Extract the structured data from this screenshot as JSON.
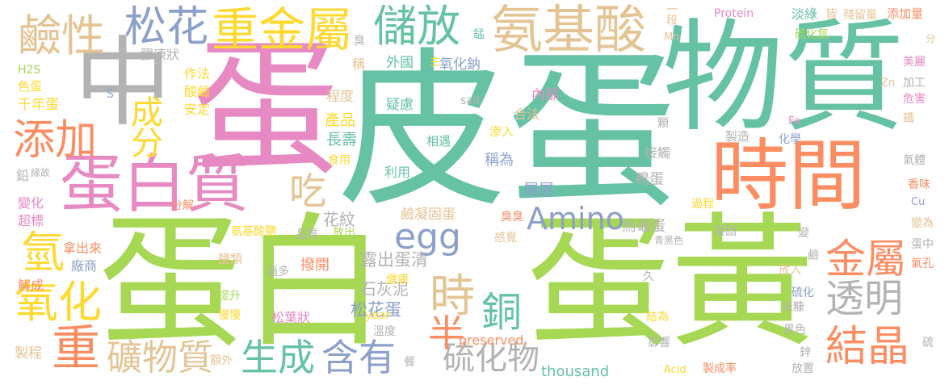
{
  "words": [
    {
      "text": "皮蛋",
      "color": "#66c2a5"
    },
    {
      "text": "蛋白",
      "color": "#a6d854"
    },
    {
      "text": "蛋黃",
      "color": "#a6d854"
    },
    {
      "text": "物質",
      "color": "#66c2a5"
    },
    {
      "text": "蛋",
      "color": "#e78ac3"
    },
    {
      "text": "時間",
      "color": "#fc8d62"
    },
    {
      "text": "中",
      "color": "#b3b3b3"
    },
    {
      "text": "蛋白質",
      "color": "#e78ac3"
    },
    {
      "text": "氨基酸",
      "color": "#e5c494"
    },
    {
      "text": "重金屬",
      "color": "#ffd92f"
    },
    {
      "text": "鹼性",
      "color": "#e5c494"
    },
    {
      "text": "松花",
      "color": "#8da0cb"
    },
    {
      "text": "儲放",
      "color": "#66c2a5"
    },
    {
      "text": "添加",
      "color": "#fc8d62"
    },
    {
      "text": "成分",
      "color": "#ffd92f"
    },
    {
      "text": "egg",
      "color": "#8da0cb"
    },
    {
      "text": "Amino",
      "color": "#8da0cb"
    },
    {
      "text": "金屬",
      "color": "#fc8d62"
    },
    {
      "text": "透明",
      "color": "#b3b3b3"
    },
    {
      "text": "結晶",
      "color": "#fc8d62"
    },
    {
      "text": "氧化",
      "color": "#ffd92f"
    },
    {
      "text": "重",
      "color": "#fc8d62"
    },
    {
      "text": "礦物質",
      "color": "#e5c494"
    },
    {
      "text": "生成",
      "color": "#66c2a5"
    },
    {
      "text": "含有",
      "color": "#8da0cb"
    },
    {
      "text": "硫化物",
      "color": "#b3b3b3"
    },
    {
      "text": "時",
      "color": "#e5c494"
    },
    {
      "text": "銅",
      "color": "#66c2a5"
    },
    {
      "text": "半",
      "color": "#fc8d62"
    },
    {
      "text": "吃",
      "color": "#e5c494"
    },
    {
      "text": "氫",
      "color": "#ffd92f"
    },
    {
      "text": "鹼凝固蛋",
      "color": "#e5c494"
    },
    {
      "text": "松花蛋",
      "color": "#8da0cb"
    },
    {
      "text": "露出蛋清",
      "color": "#b3b3b3"
    },
    {
      "text": "石灰泥",
      "color": "#b3b3b3"
    },
    {
      "text": "花紋",
      "color": "#b3b3b3"
    },
    {
      "text": "烏龜蛋",
      "color": "#b3b3b3"
    },
    {
      "text": "鴨蛋",
      "color": "#b3b3b3"
    },
    {
      "text": "層層",
      "color": "#8da0cb"
    },
    {
      "text": "稱為",
      "color": "#8da0cb"
    },
    {
      "text": "長壽",
      "color": "#66c2a5"
    },
    {
      "text": "產品",
      "color": "#ffd92f"
    },
    {
      "text": "程度",
      "color": "#e5c494"
    },
    {
      "text": "安定",
      "color": "#ffd92f"
    },
    {
      "text": "酸鹼",
      "color": "#ffd92f"
    },
    {
      "text": "作法",
      "color": "#ffd92f"
    },
    {
      "text": "膠凍狀",
      "color": "#b3b3b3"
    },
    {
      "text": "千年蛋",
      "color": "#ffd92f"
    },
    {
      "text": "色蛋",
      "color": "#ffd92f"
    },
    {
      "text": "H2S",
      "color": "#a6d854"
    },
    {
      "text": "外國",
      "color": "#66c2a5"
    },
    {
      "text": "稱",
      "color": "#e5c494"
    },
    {
      "text": "疑慮",
      "color": "#66c2a5"
    },
    {
      "text": "氧化鈉",
      "color": "#8da0cb"
    },
    {
      "text": "內部",
      "color": "#e78ac3"
    },
    {
      "text": "合法",
      "color": "#e5c494"
    },
    {
      "text": "渗入",
      "color": "#ffd92f"
    },
    {
      "text": "salt",
      "color": "#b3b3b3"
    },
    {
      "text": "相遇",
      "color": "#66c2a5"
    },
    {
      "text": "利用",
      "color": "#66c2a5"
    },
    {
      "text": "食用",
      "color": "#ffd92f"
    },
    {
      "text": "接觸",
      "color": "#b3b3b3"
    },
    {
      "text": "過程",
      "color": "#ffd92f"
    },
    {
      "text": "變化",
      "color": "#e78ac3"
    },
    {
      "text": "超標",
      "color": "#e78ac3"
    },
    {
      "text": "分解",
      "color": "#fc8d62"
    },
    {
      "text": "氨基酸鹽",
      "color": "#ffd92f"
    },
    {
      "text": "品質",
      "color": "#b3b3b3"
    },
    {
      "text": "放出",
      "color": "#a6d854"
    },
    {
      "text": "感覺",
      "color": "#e5c494"
    },
    {
      "text": "臭臭",
      "color": "#fc8d62"
    },
    {
      "text": "撥開",
      "color": "#fc8d62"
    },
    {
      "text": "過多",
      "color": "#b3b3b3"
    },
    {
      "text": "鹽類",
      "color": "#e5c494"
    },
    {
      "text": "廠商",
      "color": "#8da0cb"
    },
    {
      "text": "拿出來",
      "color": "#fc8d62"
    },
    {
      "text": "解成",
      "color": "#fc8d62"
    },
    {
      "text": "提升",
      "color": "#a6d854"
    },
    {
      "text": "慢慢",
      "color": "#ffd92f"
    },
    {
      "text": "松葉狀",
      "color": "#e78ac3"
    },
    {
      "text": "year",
      "color": "#ffd92f"
    },
    {
      "text": "溫度",
      "color": "#b3b3b3"
    },
    {
      "text": "preserved",
      "color": "#fc8d62"
    },
    {
      "text": "thousand",
      "color": "#66c2a5"
    },
    {
      "text": "製程",
      "color": "#e5c494"
    },
    {
      "text": "額外",
      "color": "#e5c494"
    },
    {
      "text": "鉛",
      "color": "#b3b3b3"
    },
    {
      "text": "緣故",
      "color": "#b3b3b3"
    },
    {
      "text": "S",
      "color": "#8da0cb"
    },
    {
      "text": "Protein",
      "color": "#e78ac3"
    },
    {
      "text": "淡綠",
      "color": "#66c2a5"
    },
    {
      "text": "皆",
      "color": "#e5c494"
    },
    {
      "text": "殘留量",
      "color": "#e5c494"
    },
    {
      "text": "添加量",
      "color": "#fc8d62"
    },
    {
      "text": "硫化氫",
      "color": "#a6d854"
    },
    {
      "text": "Mn",
      "color": "#e5c494"
    },
    {
      "text": "一段",
      "color": "#e5c494"
    },
    {
      "text": "錳",
      "color": "#66c2a5"
    },
    {
      "text": "臭",
      "color": "#b3b3b3"
    },
    {
      "text": "主",
      "color": "#ffd92f"
    },
    {
      "text": "美麗",
      "color": "#e78ac3"
    },
    {
      "text": "加工",
      "color": "#b3b3b3"
    },
    {
      "text": "危害",
      "color": "#e78ac3"
    },
    {
      "text": "Zn",
      "color": "#e5c494"
    },
    {
      "text": "鐵",
      "color": "#e5c494"
    },
    {
      "text": "Fe",
      "color": "#e78ac3"
    },
    {
      "text": "製造",
      "color": "#b3b3b3"
    },
    {
      "text": "化學",
      "color": "#8da0cb"
    },
    {
      "text": "顆",
      "color": "#b3b3b3"
    },
    {
      "text": "氣體",
      "color": "#b3b3b3"
    },
    {
      "text": "香味",
      "color": "#fc8d62"
    },
    {
      "text": "Cu",
      "color": "#8da0cb"
    },
    {
      "text": "凝固",
      "color": "#b3b3b3"
    },
    {
      "text": "青黑色",
      "color": "#b3b3b3"
    },
    {
      "text": "變",
      "color": "#b3b3b3"
    },
    {
      "text": "變為",
      "color": "#e5c494"
    },
    {
      "text": "蛋中",
      "color": "#b3b3b3"
    },
    {
      "text": "氣孔",
      "color": "#fc8d62"
    },
    {
      "text": "放入",
      "color": "#e5c494"
    },
    {
      "text": "硫化",
      "color": "#8da0cb"
    },
    {
      "text": "米糠",
      "color": "#b3b3b3"
    },
    {
      "text": "黑色",
      "color": "#b3b3b3"
    },
    {
      "text": "鋅",
      "color": "#b3b3b3"
    },
    {
      "text": "硫",
      "color": "#b3b3b3"
    },
    {
      "text": "放置",
      "color": "#b3b3b3"
    },
    {
      "text": "製成率",
      "color": "#fc8d62"
    },
    {
      "text": "Acid",
      "color": "#ffd92f"
    },
    {
      "text": "影響",
      "color": "#b3b3b3"
    },
    {
      "text": "結為",
      "color": "#ffd92f"
    },
    {
      "text": "久",
      "color": "#b3b3b3"
    },
    {
      "text": "鹼",
      "color": "#b3b3b3"
    },
    {
      "text": "健康",
      "color": "#ffd92f"
    },
    {
      "text": "餐",
      "color": "#b3b3b3"
    },
    {
      "text": "分",
      "color": "#e5c494"
    }
  ]
}
